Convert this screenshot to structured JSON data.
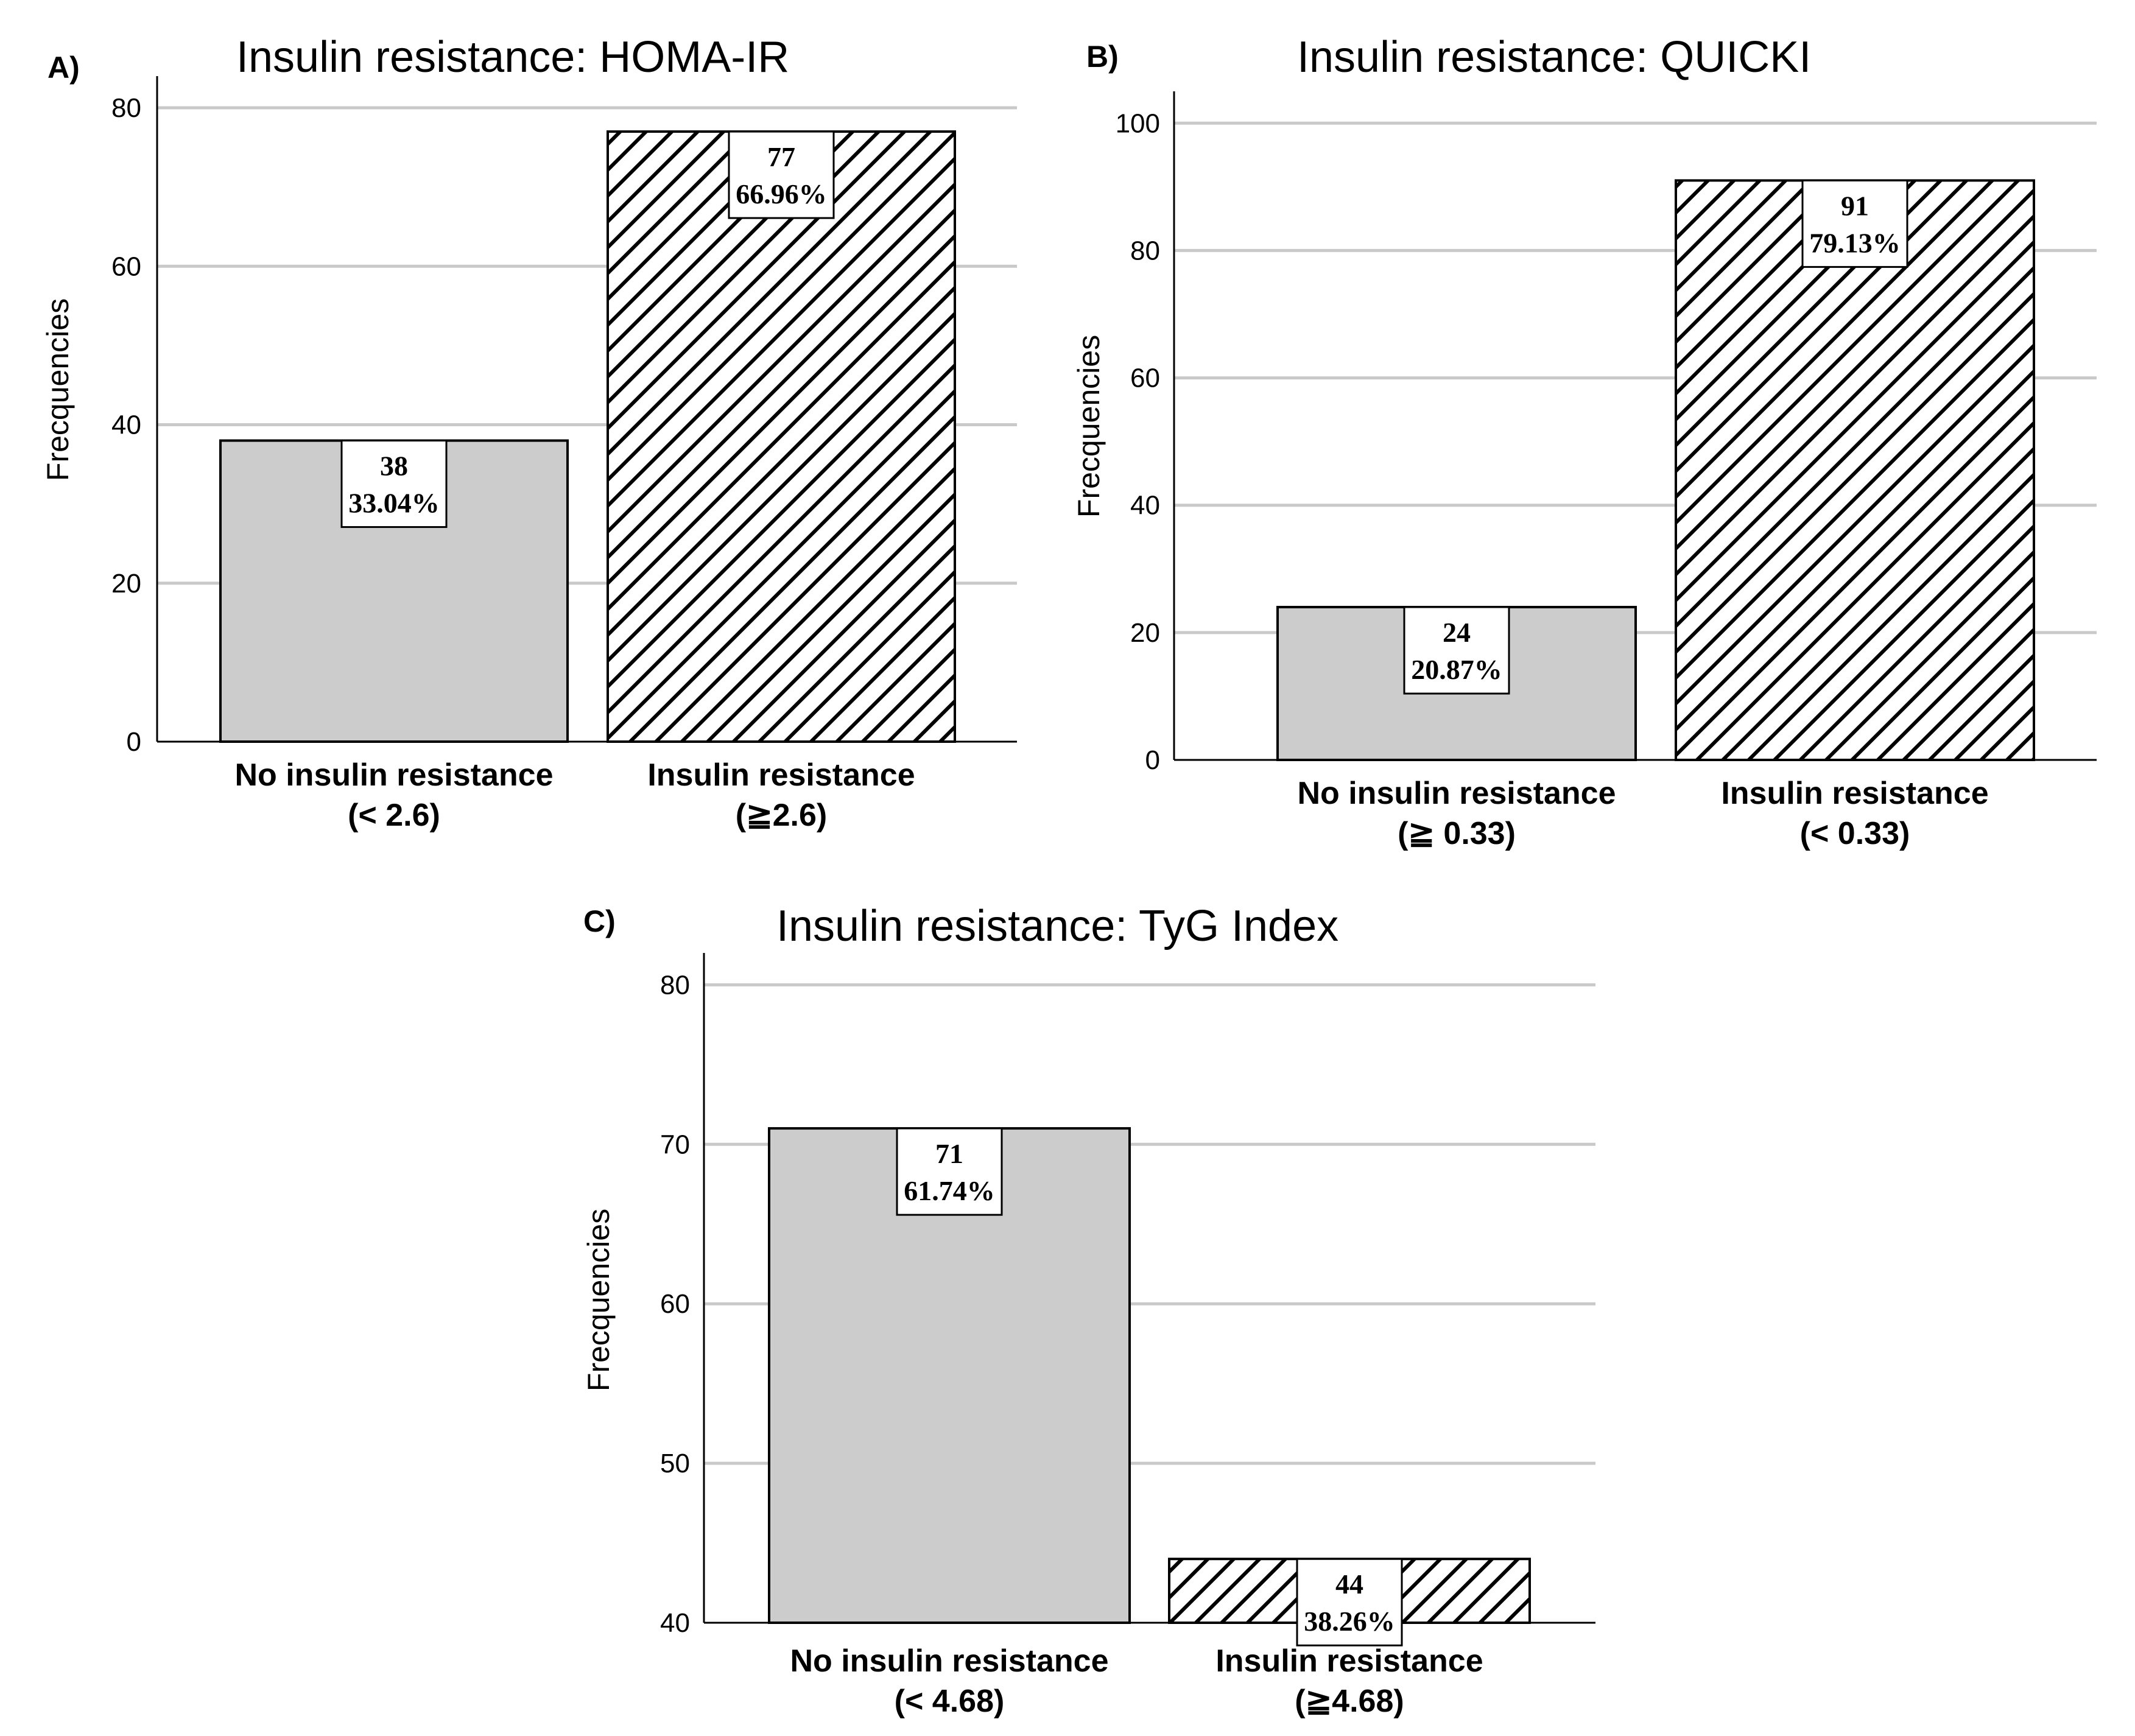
{
  "chart_data": [
    {
      "id": "A",
      "panel_letter": "A)",
      "type": "bar",
      "title": "Insulin resistance: HOMA-IR",
      "ylabel": "Frecquencies",
      "ylim": [
        0,
        84
      ],
      "yticks": [
        0,
        20,
        40,
        60,
        80
      ],
      "grid": true,
      "bars": [
        {
          "category": [
            "No insulin resistance",
            "(< 2.6)"
          ],
          "value": 38,
          "value_label": "38",
          "percent_label": "33.04%",
          "fill": "solid"
        },
        {
          "category": [
            "Insulin resistance",
            "(≧2.6)"
          ],
          "value": 77,
          "value_label": "77",
          "percent_label": "66.96%",
          "fill": "hatch"
        }
      ]
    },
    {
      "id": "B",
      "panel_letter": "B)",
      "type": "bar",
      "title": "Insulin resistance: QUICKI",
      "ylabel": "Frecquencies",
      "ylim": [
        0,
        105
      ],
      "yticks": [
        0,
        20,
        40,
        60,
        80,
        100
      ],
      "grid": true,
      "bars": [
        {
          "category": [
            "No insulin resistance",
            "(≧ 0.33)"
          ],
          "value": 24,
          "value_label": "24",
          "percent_label": "20.87%",
          "fill": "solid"
        },
        {
          "category": [
            "Insulin resistance",
            "(< 0.33)"
          ],
          "value": 91,
          "value_label": "91",
          "percent_label": "79.13%",
          "fill": "hatch"
        }
      ]
    },
    {
      "id": "C",
      "panel_letter": "C)",
      "type": "bar",
      "title": "Insulin resistance: TyG Index",
      "ylabel": "Frecquencies",
      "ylim": [
        40,
        82
      ],
      "yticks": [
        40,
        50,
        60,
        70,
        80
      ],
      "grid": true,
      "bars": [
        {
          "category": [
            "No insulin resistance",
            "(< 4.68)"
          ],
          "value": 71,
          "value_label": "71",
          "percent_label": "61.74%",
          "fill": "solid"
        },
        {
          "category": [
            "Insulin resistance",
            "(≧4.68)"
          ],
          "value": 44,
          "value_label": "44",
          "percent_label": "38.26%",
          "fill": "hatch"
        }
      ]
    }
  ]
}
